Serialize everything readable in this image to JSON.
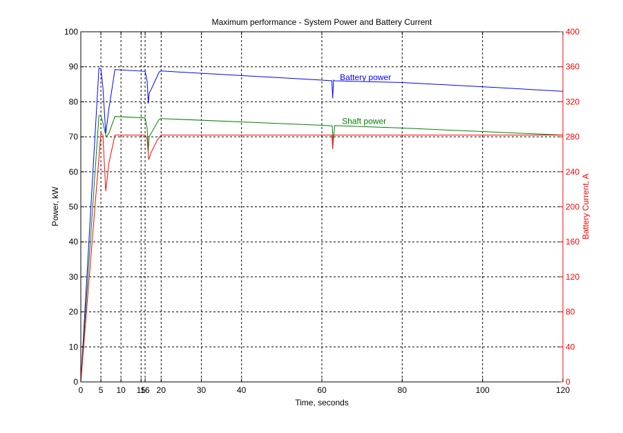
{
  "chart_data": {
    "type": "line",
    "title": "Maximum performance - System Power and Battery Current",
    "xlabel": "Time, seconds",
    "ylabel_left": "Power, kW",
    "ylabel_right": "Battery Current, A",
    "xlim": [
      0,
      120
    ],
    "ylim_left": [
      0,
      100
    ],
    "ylim_right": [
      0,
      400
    ],
    "xticks": [
      0,
      5,
      10,
      15,
      16,
      20,
      30,
      40,
      60,
      80,
      100,
      120
    ],
    "yticks_left": [
      0,
      10,
      20,
      30,
      40,
      50,
      60,
      70,
      80,
      90,
      100
    ],
    "yticks_right": [
      0,
      40,
      80,
      120,
      160,
      200,
      240,
      280,
      320,
      360,
      400
    ],
    "grid": true,
    "annotations": [
      {
        "text": "Battery power",
        "x": 64.5,
        "y": 87,
        "axis": "left",
        "color": "#0000ff"
      },
      {
        "text": "Shaft power",
        "x": 65,
        "y": 74.5,
        "axis": "left",
        "color": "#008000"
      }
    ],
    "series": [
      {
        "name": "Battery power",
        "axis": "left",
        "color": "#0000ff",
        "x": [
          0,
          4.5,
          5.0,
          5.5,
          6.2,
          7.0,
          8.5,
          16.0,
          16.5,
          16.8,
          17.0,
          17.5,
          19.5,
          20.0,
          60,
          62.5,
          62.7,
          62.9,
          63.2,
          80,
          100,
          120
        ],
        "y": [
          0,
          89.5,
          89.5,
          84,
          71,
          78,
          89.2,
          88.7,
          86,
          79.5,
          82.5,
          83.5,
          88.5,
          88.8,
          86.2,
          86.0,
          81,
          86.2,
          86.0,
          85.5,
          84.3,
          83
        ]
      },
      {
        "name": "Shaft power",
        "axis": "left",
        "color": "#008000",
        "x": [
          0,
          4.5,
          5.0,
          5.5,
          6.3,
          7.0,
          8.5,
          16.0,
          16.5,
          16.8,
          17.0,
          19.5,
          20.0,
          60,
          62.6,
          62.8,
          63.2,
          80,
          100,
          120
        ],
        "y": [
          0,
          76,
          76,
          74,
          70,
          71,
          75.8,
          75.4,
          72.5,
          66,
          70,
          75,
          75.2,
          73.3,
          73.1,
          68.5,
          73.2,
          72.5,
          71.5,
          70.5
        ]
      },
      {
        "name": "Battery current",
        "axis": "right",
        "color": "#ff0000",
        "x": [
          0,
          5.0,
          5.5,
          6.2,
          7.0,
          8.5,
          16.0,
          16.5,
          16.9,
          17.5,
          19.0,
          20.0,
          62.5,
          62.7,
          62.9,
          63.2,
          120
        ],
        "y": [
          0,
          284,
          282,
          218,
          250,
          282,
          282,
          278,
          254,
          262,
          276,
          282,
          282,
          266,
          282,
          282,
          282
        ]
      }
    ]
  }
}
